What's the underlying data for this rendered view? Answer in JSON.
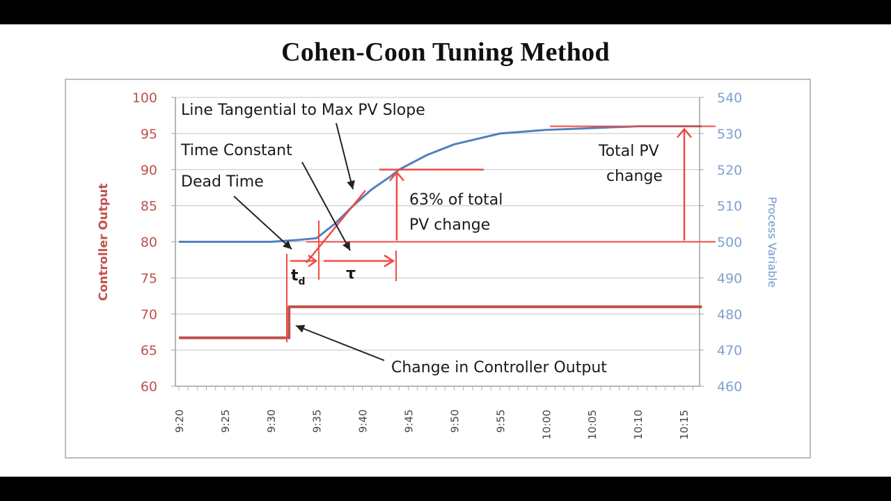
{
  "title": "Cohen-Coon Tuning Method",
  "chart_data": {
    "type": "line",
    "title": "Cohen-Coon Tuning Method",
    "xlabel": "",
    "ylabel": "Controller Output",
    "y2label": "Process Variable",
    "x_tick_labels": [
      "9:20",
      "9:25",
      "9:30",
      "9:35",
      "9:40",
      "9:45",
      "9:50",
      "9:55",
      "10:00",
      "10:05",
      "10:10",
      "10:15"
    ],
    "ylim": [
      60,
      100
    ],
    "y_ticks": [
      100,
      95,
      90,
      85,
      80,
      75,
      70,
      65,
      60
    ],
    "y2lim": [
      460,
      540
    ],
    "y2_ticks": [
      540,
      530,
      520,
      510,
      500,
      490,
      480,
      470,
      460
    ],
    "grid": "horizontal",
    "series": [
      {
        "name": "Controller Output",
        "axis": "left",
        "color": "#c0504d",
        "x": [
          "9:20",
          "9:32",
          "9:32",
          "10:17"
        ],
        "values": [
          66.7,
          66.7,
          71.0,
          71.0
        ]
      },
      {
        "name": "Process Variable",
        "axis": "right",
        "color": "#4f81bd",
        "x": [
          "9:20",
          "9:30",
          "9:33",
          "9:35",
          "9:37",
          "9:39",
          "9:41",
          "9:43",
          "9:44",
          "9:47",
          "9:50",
          "9:55",
          "10:00",
          "10:05",
          "10:10",
          "10:17"
        ],
        "values": [
          500,
          500,
          500.5,
          501,
          505,
          510,
          514.5,
          518,
          520,
          524,
          527,
          530,
          531,
          531.5,
          532,
          532
        ]
      }
    ],
    "annotations": [
      {
        "text": "Line Tangential to Max PV Slope"
      },
      {
        "text": "Time Constant"
      },
      {
        "text": "Dead Time"
      },
      {
        "text": "63% of total PV change"
      },
      {
        "text": "Total PV change"
      },
      {
        "text": "Change in Controller Output"
      },
      {
        "text": "t_d",
        "meaning": "dead time interval 9:32–9:35"
      },
      {
        "text": "τ",
        "meaning": "time constant interval 9:35–9:44"
      }
    ],
    "reference_lines": {
      "pv_baseline": 500,
      "pv_final": 532,
      "pv_63_percent": 520
    }
  },
  "labels": {
    "y_left": "Controller Output",
    "y_right": "Process Variable",
    "ann_tangent": "Line Tangential to Max PV Slope",
    "ann_time_constant": "Time Constant",
    "ann_dead_time": "Dead Time",
    "ann_63_line1": "63% of total",
    "ann_63_line2": "PV change",
    "ann_total_line1": "Total PV",
    "ann_total_line2": "change",
    "ann_co_change": "Change in Controller Output",
    "td": "t",
    "td_sub": "d",
    "tau": "τ"
  },
  "colors": {
    "controller_output": "#c0504d",
    "process_variable": "#4f81bd",
    "annotation_red": "#ef4b43",
    "right_axis_text": "#7ea0cf"
  }
}
